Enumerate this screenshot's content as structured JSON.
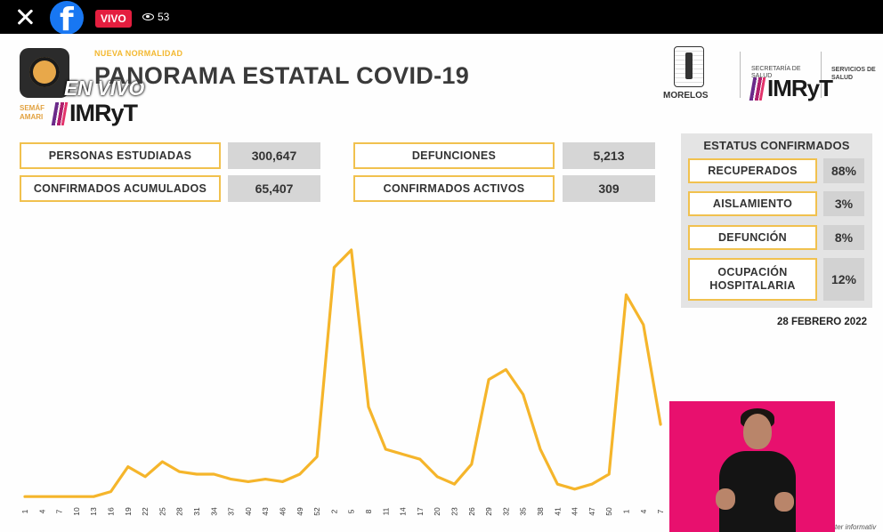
{
  "stream": {
    "live_badge": "VIVO",
    "viewer_count": "53",
    "brand_color": "#1877f2",
    "live_color": "#e41e3f"
  },
  "header": {
    "subtitle": "NUEVA NORMALIDAD",
    "title": "PANORAMA ESTATAL COVID-19",
    "semaforo_caption": "SEMÁF AMARI",
    "overlay_text": "EN VIVO",
    "imryt_logo": "IMRyT",
    "morelos_label": "MORELOS",
    "secretaria_label": "SECRETARÍA DE SALUD",
    "servicios_label": "SERVICIOS DE SALUD"
  },
  "stats": [
    {
      "label": "PERSONAS ESTUDIADAS",
      "value": "300,647"
    },
    {
      "label": "CONFIRMADOS ACUMULADOS",
      "value": "65,407"
    },
    {
      "label": "DEFUNCIONES",
      "value": "5,213"
    },
    {
      "label": "CONFIRMADOS ACTIVOS",
      "value": "309"
    }
  ],
  "status": {
    "title": "ESTATUS CONFIRMADOS",
    "items": [
      {
        "label": "RECUPERADOS",
        "value": "88%"
      },
      {
        "label": "AISLAMIENTO",
        "value": "3%"
      },
      {
        "label": "DEFUNCIÓN",
        "value": "8%"
      },
      {
        "label": "OCUPACIÓN HOSPITALARIA",
        "value": "12%"
      }
    ],
    "date": "28 FEBRERO 2022"
  },
  "footer_note": "ter informativ",
  "colors": {
    "accent": "#f3b830",
    "box_border": "#f1c14e",
    "line": "#f5b52b",
    "interpreter_bg": "#e8106e"
  },
  "chart_data": {
    "type": "line",
    "xlabel": "",
    "ylabel": "",
    "grid": false,
    "x": [
      "1",
      "4",
      "7",
      "10",
      "13",
      "16",
      "19",
      "22",
      "25",
      "28",
      "31",
      "34",
      "37",
      "40",
      "43",
      "46",
      "49",
      "52",
      "2",
      "5",
      "8",
      "11",
      "14",
      "17",
      "20",
      "23",
      "26",
      "29",
      "32",
      "35",
      "38",
      "41",
      "44",
      "47",
      "50",
      "1",
      "4",
      "7"
    ],
    "series": [
      {
        "values": [
          1,
          1,
          1,
          1,
          1,
          3,
          13,
          9,
          15,
          11,
          10,
          10,
          8,
          7,
          8,
          7,
          10,
          17,
          93,
          100,
          37,
          20,
          18,
          16,
          9,
          6,
          14,
          48,
          52,
          42,
          20,
          6,
          4,
          6,
          10,
          82,
          70,
          30
        ]
      }
    ],
    "ylim": [
      0,
      100
    ]
  }
}
